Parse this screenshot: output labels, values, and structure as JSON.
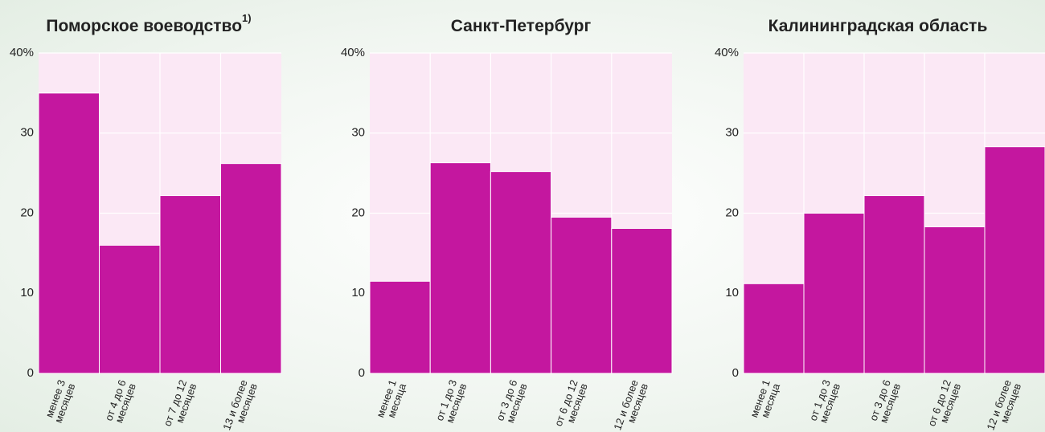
{
  "chart_data": [
    {
      "type": "bar",
      "title": "Поморское воеводство",
      "title_note": "1)",
      "categories": [
        [
          "менее 3",
          "месяцев"
        ],
        [
          "от 4 до 6",
          "месяцев"
        ],
        [
          "от 7 до 12",
          "месяцев"
        ],
        [
          "13 и более",
          "месяцев"
        ]
      ],
      "values": [
        35,
        16,
        22.2,
        26.2
      ],
      "color": "#c4179f",
      "ylim": [
        0,
        40
      ],
      "yticks": [
        0,
        10,
        20,
        30,
        {
          "value": 40,
          "label": "40%"
        }
      ],
      "grid": true
    },
    {
      "type": "bar",
      "title": "Санкт-Петербург",
      "categories": [
        [
          "менее 1",
          "месяца"
        ],
        [
          "от 1 до 3",
          "месяцев"
        ],
        [
          "от 3 до 6",
          "месяцев"
        ],
        [
          "от 6 до 12",
          "месяцев"
        ],
        [
          "12 и более",
          "месяцев"
        ]
      ],
      "values": [
        11.5,
        26.3,
        25.2,
        19.5,
        18.1
      ],
      "color": "#c4179f",
      "ylim": [
        0,
        40
      ],
      "yticks": [
        0,
        10,
        20,
        30,
        {
          "value": 40,
          "label": "40%"
        }
      ],
      "grid": true
    },
    {
      "type": "bar",
      "title": "Калининградская область",
      "categories": [
        [
          "менее 1",
          "месяца"
        ],
        [
          "от 1 до 3",
          "месяцев"
        ],
        [
          "от 3 до 6",
          "месяцев"
        ],
        [
          "от 6 до 12",
          "месяцев"
        ],
        [
          "12 и более",
          "месяцев"
        ]
      ],
      "values": [
        11.2,
        20,
        22.2,
        18.3,
        28.3
      ],
      "color": "#c4179f",
      "ylim": [
        0,
        40
      ],
      "yticks": [
        0,
        10,
        20,
        30,
        {
          "value": 40,
          "label": "40%"
        }
      ],
      "grid": true
    }
  ]
}
